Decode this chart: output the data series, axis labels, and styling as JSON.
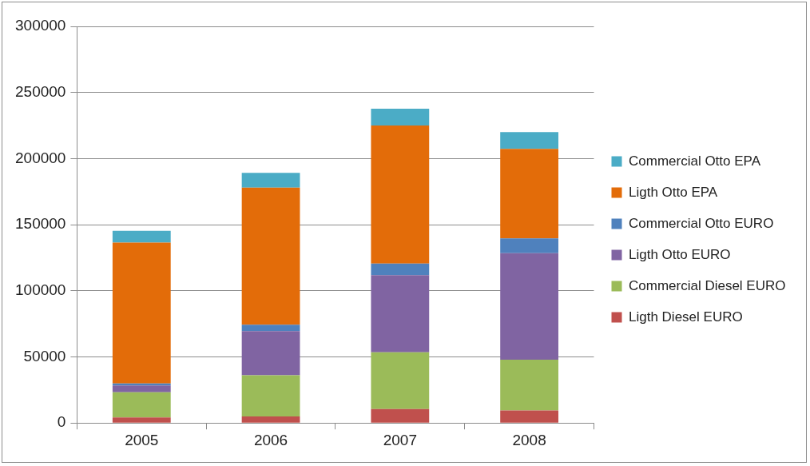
{
  "chart_data": {
    "type": "bar",
    "stacked": true,
    "categories": [
      "2005",
      "2006",
      "2007",
      "2008"
    ],
    "series": [
      {
        "name": "Ligth Diesel EURO",
        "color": "#c0504d",
        "values": [
          4200,
          5000,
          10600,
          9500
        ]
      },
      {
        "name": "Commercial Diesel EURO",
        "color": "#9bbb59",
        "values": [
          19000,
          31100,
          42900,
          38400
        ]
      },
      {
        "name": "Ligth Otto EURO",
        "color": "#8064a2",
        "values": [
          5200,
          33400,
          58300,
          80500
        ]
      },
      {
        "name": "Commercial Otto EURO",
        "color": "#4f81bd",
        "values": [
          1500,
          4800,
          8800,
          11200
        ]
      },
      {
        "name": "Ligth Otto EPA",
        "color": "#e36c09",
        "values": [
          106500,
          103700,
          104500,
          67800
        ]
      },
      {
        "name": "Commercial Otto EPA",
        "color": "#4bacc6",
        "values": [
          9000,
          11200,
          12700,
          12700
        ]
      }
    ],
    "ylim": [
      0,
      300000
    ],
    "yticks": [
      0,
      50000,
      100000,
      150000,
      200000,
      250000,
      300000
    ],
    "grid": "y",
    "legend": "right"
  }
}
